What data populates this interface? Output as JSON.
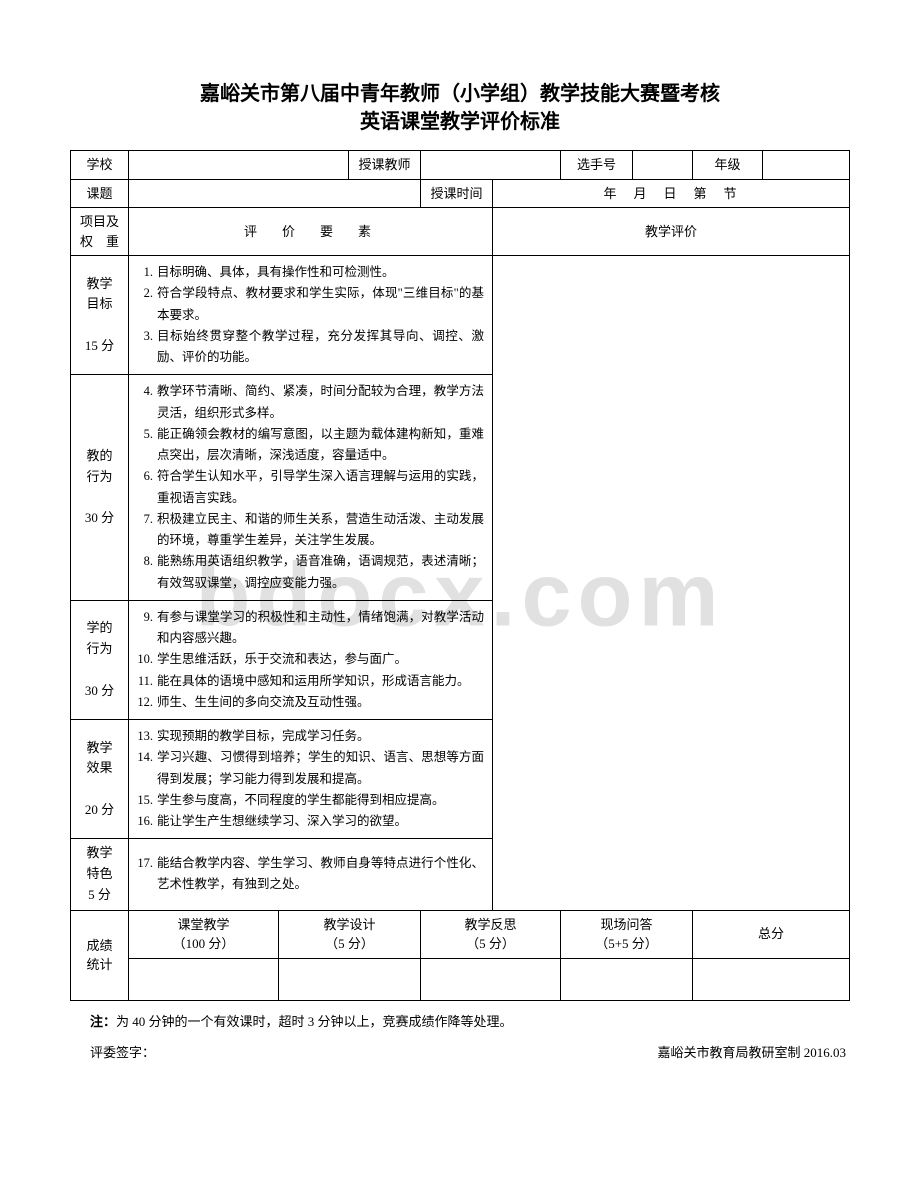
{
  "watermark": "bdocx.com",
  "title_line1": "嘉峪关市第八届中青年教师（小学组）教学技能大赛暨考核",
  "title_line2": "英语课堂教学评价标准",
  "header": {
    "school_label": "学校",
    "teacher_label": "授课教师",
    "contestant_label": "选手号",
    "grade_label": "年级",
    "topic_label": "课题",
    "time_label": "授课时间",
    "time_value": "年　月　日　第　节"
  },
  "cols": {
    "item_weight": "项目及\n权　重",
    "criteria": "评　价　要　素",
    "evaluation": "教学评价"
  },
  "sections": [
    {
      "name": "教学\n目标\n\n15 分",
      "items": [
        {
          "n": "1.",
          "t": "目标明确、具体，具有操作性和可检测性。"
        },
        {
          "n": "2.",
          "t": "符合学段特点、教材要求和学生实际，体现\"三维目标\"的基本要求。"
        },
        {
          "n": "3.",
          "t": "目标始终贯穿整个教学过程，充分发挥其导向、调控、激励、评价的功能。"
        }
      ]
    },
    {
      "name": "教的\n行为\n\n30 分",
      "items": [
        {
          "n": "4.",
          "t": "教学环节清晰、简约、紧凑，时间分配较为合理，教学方法灵活，组织形式多样。"
        },
        {
          "n": "5.",
          "t": "能正确领会教材的编写意图，以主题为载体建构新知，重难点突出，层次清晰，深浅适度，容量适中。"
        },
        {
          "n": "6.",
          "t": "符合学生认知水平，引导学生深入语言理解与运用的实践，重视语言实践。"
        },
        {
          "n": "7.",
          "t": "积极建立民主、和谐的师生关系，营造生动活泼、主动发展的环境，尊重学生差异，关注学生发展。"
        },
        {
          "n": "8.",
          "t": "能熟练用英语组织教学，语音准确，语调规范，表述清晰；有效驾驭课堂，调控应变能力强。"
        }
      ]
    },
    {
      "name": "学的\n行为\n\n30 分",
      "items": [
        {
          "n": "9.",
          "t": "有参与课堂学习的积极性和主动性，情绪饱满，对教学活动和内容感兴趣。"
        },
        {
          "n": "10.",
          "t": "学生思维活跃，乐于交流和表达，参与面广。"
        },
        {
          "n": "11.",
          "t": "能在具体的语境中感知和运用所学知识，形成语言能力。"
        },
        {
          "n": "12.",
          "t": "师生、生生间的多向交流及互动性强。"
        }
      ]
    },
    {
      "name": "教学\n效果\n\n20 分",
      "items": [
        {
          "n": "13.",
          "t": "实现预期的教学目标，完成学习任务。"
        },
        {
          "n": "14.",
          "t": "学习兴趣、习惯得到培养；学生的知识、语言、思想等方面得到发展；学习能力得到发展和提高。"
        },
        {
          "n": "15.",
          "t": "学生参与度高，不同程度的学生都能得到相应提高。"
        },
        {
          "n": "16.",
          "t": "能让学生产生想继续学习、深入学习的欲望。"
        }
      ]
    },
    {
      "name": "教学\n特色\n5 分",
      "items": [
        {
          "n": "17.",
          "t": "能结合教学内容、学生学习、教师自身等特点进行个性化、艺术性教学，有独到之处。"
        }
      ]
    }
  ],
  "score": {
    "row_label": "成绩\n统计",
    "classroom": "课堂教学\n（100 分）",
    "design": "教学设计\n（5 分）",
    "reflection": "教学反思\n（5 分）",
    "qa": "现场问答\n（5+5 分）",
    "total": "总分"
  },
  "footer": {
    "note_label": "注：",
    "note_text": "为 40 分钟的一个有效课时，超时 3 分钟以上，竞赛成绩作降等处理。",
    "sign_label": "评委签字：",
    "maker": "嘉峪关市教育局教研室制  2016.03"
  }
}
